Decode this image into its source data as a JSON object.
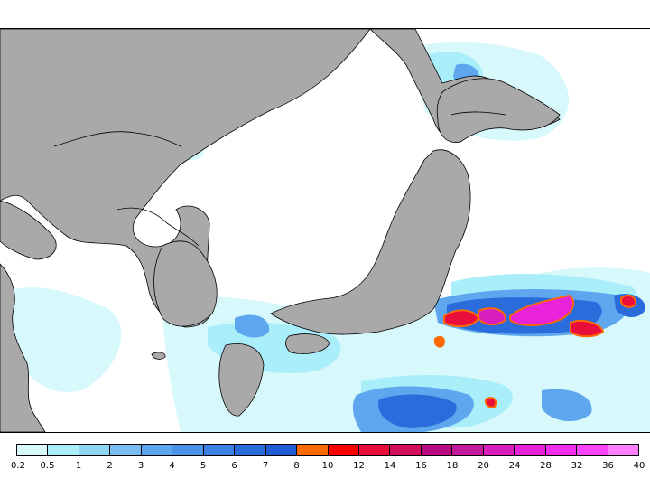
{
  "map": {
    "land_color": "#a9a9a9",
    "sea_color": "#ffffff",
    "coast_color": "#000000"
  },
  "legend": {
    "colors": [
      "#d7f9fb",
      "#a9eef8",
      "#8fd6f5",
      "#79bdf2",
      "#5ea7ef",
      "#4d93e9",
      "#3b80e2",
      "#2a6cdb",
      "#1f5bd2",
      "#ff6a00",
      "#ff0000",
      "#ea0f3b",
      "#d20d5e",
      "#b80a80",
      "#c21a9a",
      "#d61fbc",
      "#e923d9",
      "#f22ff0",
      "#ff44ff",
      "#ff80ff"
    ],
    "ticks": [
      "0.2",
      "0.5",
      "1",
      "2",
      "3",
      "4",
      "5",
      "6",
      "7",
      "8",
      "10",
      "12",
      "14",
      "16",
      "18",
      "20",
      "24",
      "28",
      "32",
      "36",
      "40"
    ]
  }
}
